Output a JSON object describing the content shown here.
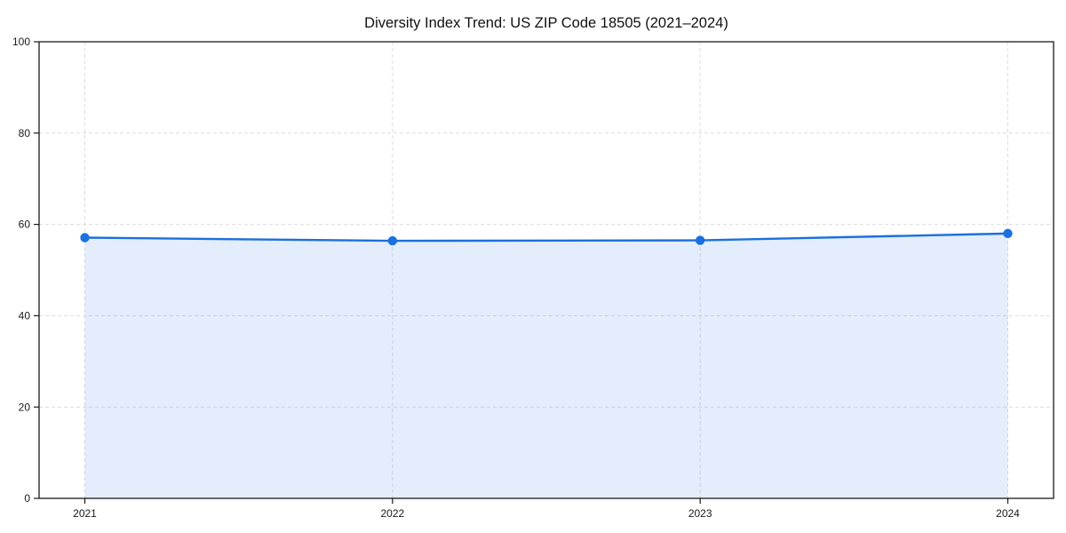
{
  "chart_data": {
    "type": "line",
    "title": "Diversity Index Trend: US ZIP Code 18505 (2021–2024)",
    "categories": [
      "2021",
      "2022",
      "2023",
      "2024"
    ],
    "series": [
      {
        "name": "Diversity Index",
        "values": [
          57.1,
          56.4,
          56.5,
          58.0
        ]
      }
    ],
    "xlabel": "",
    "ylabel": "",
    "ylim": [
      0,
      100
    ],
    "yticks": [
      0,
      20,
      40,
      60,
      80,
      100
    ],
    "grid": true,
    "grid_style": "dashed",
    "legend_position": "none",
    "marker": "circle",
    "area_fill": true,
    "colors": {
      "line": "#1b6fe0",
      "marker": "#1b6fe0",
      "fill": "rgba(27, 111, 224, 0.12)",
      "grid": "#dcdcdc",
      "spine": "#1a1a1a",
      "text": "#1a1a1a",
      "background": "#ffffff"
    }
  }
}
